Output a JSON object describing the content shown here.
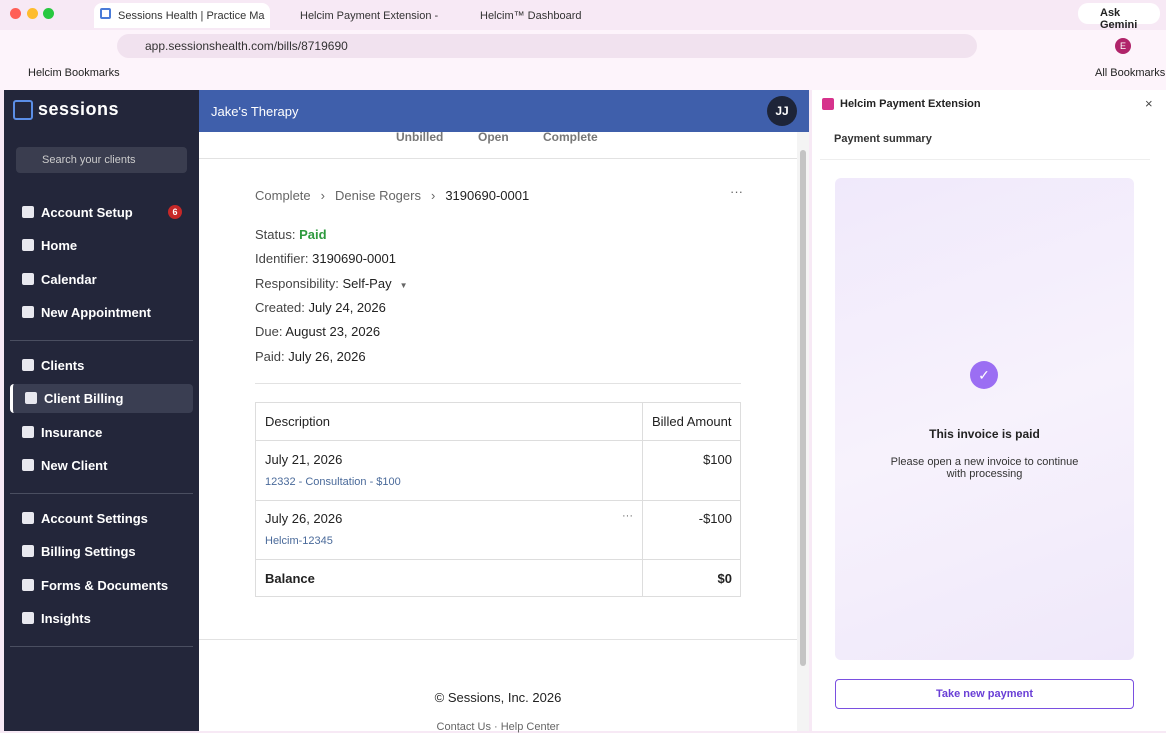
{
  "browser": {
    "tabs": [
      "Sessions Health | Practice Ma",
      "Helcim Payment Extension - ",
      "Helcim™ Dashboard"
    ],
    "ask_gemini": "Ask Gemini",
    "url": "app.sessionshealth.com/bills/8719690",
    "profile": "E",
    "bookmarks": {
      "folder": "Helcim Bookmarks",
      "all": "All Bookmarks"
    }
  },
  "sidebar": {
    "logo": "sessions",
    "search_placeholder": "Search your clients",
    "nav": [
      [
        {
          "label": "Account Setup",
          "badge": 6
        },
        {
          "label": "Home"
        },
        {
          "label": "Calendar"
        },
        {
          "label": "New Appointment"
        }
      ],
      [
        {
          "label": "Clients"
        },
        {
          "label": "Client Billing",
          "active": true
        },
        {
          "label": "Insurance"
        },
        {
          "label": "New Client"
        }
      ],
      [
        {
          "label": "Account Settings"
        },
        {
          "label": "Billing Settings"
        },
        {
          "label": "Forms & Documents"
        },
        {
          "label": "Insights"
        }
      ]
    ]
  },
  "header": {
    "practice": "Jake's Therapy",
    "avatar": "JJ"
  },
  "bill_tabs": [
    "Unbilled",
    "Open",
    "Complete"
  ],
  "breadcrumb": [
    "Complete",
    "Denise Rogers",
    "3190690-0001"
  ],
  "details": [
    {
      "label": "Status:",
      "value": "Paid"
    },
    {
      "label": "Identifier:",
      "value": "3190690-0001"
    },
    {
      "label": "Responsibility:",
      "value": "Self-Pay"
    },
    {
      "label": "Created:",
      "value": "July 24, 2026"
    },
    {
      "label": "Due:",
      "value": "August 23, 2026"
    },
    {
      "label": "Paid:",
      "value": "July 26, 2026"
    }
  ],
  "table": {
    "headers": [
      "Description",
      "Billed Amount"
    ],
    "rows": [
      {
        "date": "July 21, 2026",
        "detail": "12332 - Consultation - $100",
        "amount": "$100"
      },
      {
        "date": "July 26, 2026",
        "detail": "Helcim-12345",
        "amount": "-$100"
      }
    ],
    "total": {
      "label": "Balance",
      "amount": "$0"
    }
  },
  "footer": {
    "copyright": "© Sessions, Inc. 2026",
    "links": "Contact Us · Help Center"
  },
  "extension": {
    "title": "Helcim Payment Extension",
    "section": "Payment summary",
    "message_title": "This invoice is paid",
    "message": "Please open a new invoice to continue with processing",
    "button": "Take new payment"
  }
}
